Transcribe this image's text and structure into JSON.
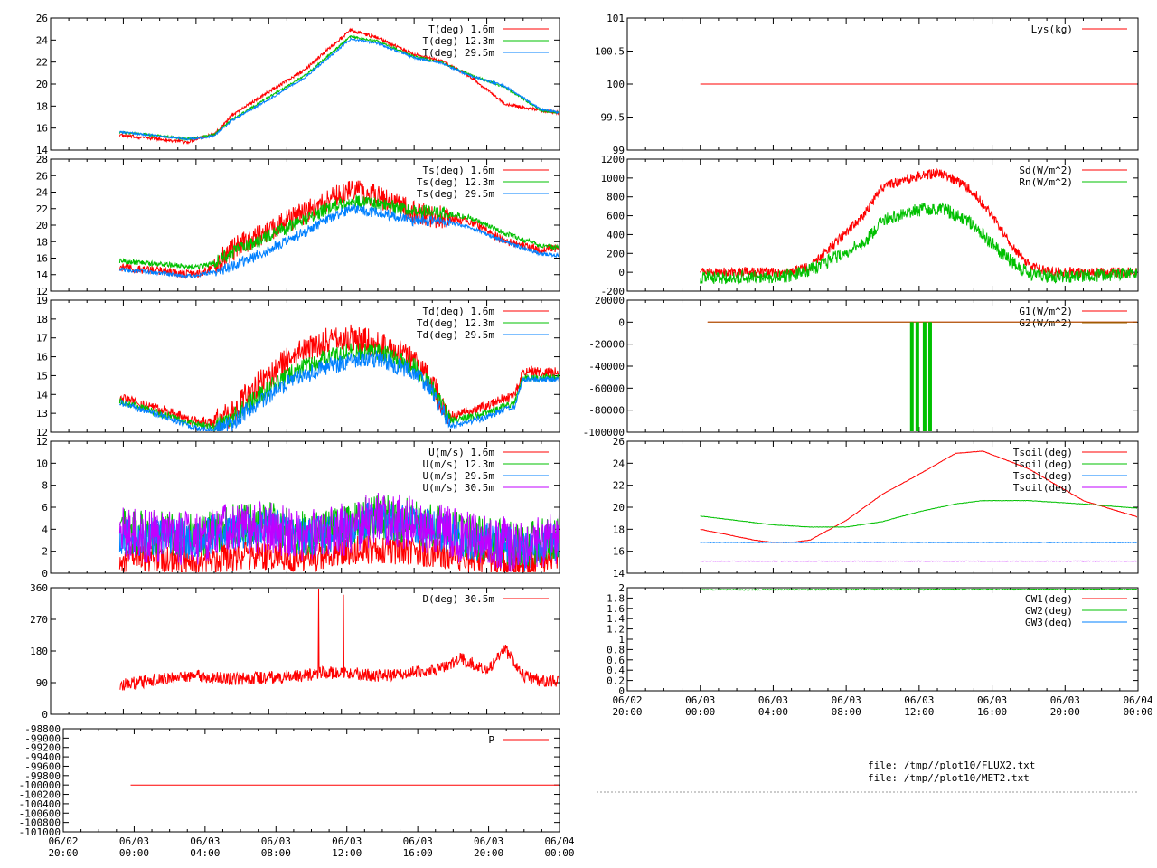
{
  "colors": {
    "red": "#ff0000",
    "green": "#00c000",
    "blue": "#0080ff",
    "purple": "#c000ff",
    "brown": "#a05a00"
  },
  "time_ticks": [
    [
      "06/02",
      "20:00"
    ],
    [
      "06/03",
      "00:00"
    ],
    [
      "06/03",
      "04:00"
    ],
    [
      "06/03",
      "08:00"
    ],
    [
      "06/03",
      "12:00"
    ],
    [
      "06/03",
      "16:00"
    ],
    [
      "06/03",
      "20:00"
    ],
    [
      "06/04",
      "00:00"
    ]
  ],
  "files": [
    "file: /tmp//plot10/FLUX2.txt",
    "file: /tmp//plot10/MET2.txt"
  ],
  "chart_data": [
    {
      "type": "line",
      "ylim": [
        14,
        26
      ],
      "y_ticks": [
        "14",
        "16",
        "18",
        "20",
        "22",
        "24",
        "26"
      ],
      "show_time_labels": false,
      "x_hours": [
        23.8,
        24,
        26,
        27.5,
        28.3,
        29,
        30,
        32,
        34,
        35.5,
        36.5,
        38,
        40,
        41.5,
        43,
        45,
        47,
        48
      ],
      "series": [
        {
          "name": "T(deg)  1.6m",
          "color": "red",
          "values": [
            15.4,
            15.3,
            15.0,
            14.7,
            15.2,
            15.4,
            17.2,
            19.3,
            21.3,
            23.5,
            24.9,
            24.2,
            22.7,
            22.1,
            20.8,
            18.2,
            17.6,
            17.4
          ]
        },
        {
          "name": "T(deg) 12.3m",
          "color": "green",
          "values": [
            15.6,
            15.6,
            15.3,
            15.0,
            15.2,
            15.4,
            16.8,
            18.8,
            20.8,
            22.9,
            24.3,
            23.9,
            22.5,
            22.0,
            20.9,
            19.7,
            17.6,
            17.4
          ]
        },
        {
          "name": "T(deg) 29.5m",
          "color": "blue",
          "values": [
            15.7,
            15.6,
            15.3,
            15.0,
            15.1,
            15.3,
            16.7,
            18.6,
            20.6,
            22.7,
            24.1,
            23.7,
            22.4,
            21.9,
            20.8,
            19.8,
            17.7,
            17.4
          ]
        }
      ]
    },
    {
      "type": "line",
      "ylim": [
        12,
        28
      ],
      "y_ticks": [
        "12",
        "14",
        "16",
        "18",
        "20",
        "22",
        "24",
        "26",
        "28"
      ],
      "show_time_labels": false,
      "x_hours": [
        23.8,
        24,
        26,
        27.5,
        28.3,
        29,
        30,
        32,
        34,
        35.5,
        36.5,
        38,
        40,
        41.5,
        43,
        45,
        47,
        48
      ],
      "series": [
        {
          "name": "Ts(deg)  1.6m",
          "color": "red",
          "values": [
            15.0,
            14.8,
            14.5,
            14.0,
            14.3,
            15.0,
            17.0,
            19.5,
            21.5,
            23.5,
            24.3,
            23.5,
            21.5,
            21.0,
            20.5,
            18.0,
            17.0,
            17.2
          ]
        },
        {
          "name": "Ts(deg) 12.3m",
          "color": "green",
          "values": [
            15.7,
            15.6,
            15.3,
            15.0,
            15.0,
            15.5,
            16.7,
            18.7,
            20.7,
            22.3,
            23.0,
            22.5,
            21.8,
            21.5,
            21.0,
            19.0,
            17.5,
            17.3
          ]
        },
        {
          "name": "Ts(deg) 29.5m",
          "color": "blue",
          "values": [
            14.7,
            14.6,
            14.2,
            13.8,
            14.0,
            14.3,
            15.0,
            17.0,
            19.2,
            21.0,
            22.0,
            21.5,
            20.5,
            20.5,
            19.8,
            18.0,
            16.5,
            16.3
          ]
        }
      ]
    },
    {
      "type": "line",
      "ylim": [
        12,
        19
      ],
      "y_ticks": [
        "12",
        "13",
        "14",
        "15",
        "16",
        "17",
        "18",
        "19"
      ],
      "show_time_labels": false,
      "x_hours": [
        23.8,
        24,
        26,
        28,
        29,
        30,
        31,
        33,
        35,
        36.5,
        38,
        40,
        41,
        42,
        44,
        45,
        45.5,
        46,
        48
      ],
      "series": [
        {
          "name": "Td(deg)  1.6m",
          "color": "red",
          "values": [
            13.9,
            13.8,
            13.2,
            12.6,
            12.5,
            13.0,
            14.2,
            15.8,
            16.8,
            17.0,
            16.7,
            15.8,
            14.5,
            12.8,
            13.4,
            13.8,
            13.9,
            15.2,
            15.2
          ]
        },
        {
          "name": "Td(deg) 12.3m",
          "color": "green",
          "values": [
            13.7,
            13.6,
            13.0,
            12.4,
            12.3,
            12.8,
            13.6,
            15.0,
            15.9,
            16.3,
            16.3,
            15.5,
            14.4,
            12.6,
            13.0,
            13.4,
            13.5,
            14.9,
            14.9
          ]
        },
        {
          "name": "Td(deg) 29.5m",
          "color": "blue",
          "values": [
            13.6,
            13.5,
            12.9,
            12.2,
            12.1,
            12.5,
            13.3,
            14.6,
            15.4,
            15.8,
            15.9,
            15.2,
            14.2,
            12.3,
            12.8,
            13.2,
            13.3,
            14.8,
            14.8
          ]
        }
      ]
    },
    {
      "type": "line",
      "ylim": [
        0,
        12
      ],
      "y_ticks": [
        "0",
        "2",
        "4",
        "6",
        "8",
        "10",
        "12"
      ],
      "show_time_labels": false,
      "x_hours": [
        23.8,
        24,
        26,
        28,
        29,
        30,
        32,
        34,
        35,
        36,
        38,
        40,
        42,
        43,
        45,
        46,
        47,
        48
      ],
      "series": [
        {
          "name": "U(m/s)  1.6m",
          "color": "red",
          "values": [
            1.3,
            1.4,
            1.2,
            1.0,
            1.3,
            1.5,
            1.6,
            1.3,
            1.6,
            2.0,
            2.2,
            2.0,
            1.6,
            1.3,
            1.0,
            0.8,
            1.2,
            1.5
          ]
        },
        {
          "name": "U(m/s) 12.3m",
          "color": "green",
          "values": [
            4.0,
            3.8,
            3.6,
            3.4,
            3.9,
            4.3,
            4.5,
            3.5,
            3.8,
            4.2,
            5.2,
            4.7,
            3.8,
            3.3,
            2.9,
            2.3,
            3.0,
            3.3
          ]
        },
        {
          "name": "U(m/s) 29.5m",
          "color": "blue",
          "values": [
            3.6,
            3.5,
            3.3,
            3.1,
            3.6,
            4.0,
            4.2,
            3.2,
            3.5,
            3.9,
            4.9,
            4.4,
            3.5,
            3.0,
            2.6,
            2.0,
            2.7,
            3.0
          ]
        },
        {
          "name": "U(m/s) 30.5m",
          "color": "purple",
          "values": [
            3.7,
            3.6,
            3.3,
            3.1,
            3.6,
            4.0,
            4.2,
            3.2,
            3.6,
            4.0,
            5.0,
            4.5,
            3.6,
            3.1,
            2.7,
            2.1,
            2.8,
            3.1
          ]
        }
      ]
    },
    {
      "type": "line",
      "ylim": [
        0,
        360
      ],
      "y_ticks": [
        "0",
        "90",
        "180",
        "270",
        "360"
      ],
      "show_time_labels": false,
      "x_hours": [
        23.8,
        24,
        26,
        28,
        30,
        32,
        34,
        35,
        36,
        37,
        38,
        40,
        41.5,
        42.5,
        43,
        44,
        45,
        46,
        47,
        48
      ],
      "series": [
        {
          "name": "D(deg)  30.5m",
          "color": "red",
          "values": [
            90,
            85,
            100,
            110,
            100,
            105,
            110,
            120,
            115,
            115,
            110,
            120,
            130,
            160,
            150,
            125,
            185,
            110,
            95,
            95
          ]
        }
      ]
    },
    {
      "type": "line",
      "ylim": [
        -101000,
        -98800
      ],
      "y_ticks": [
        "-101000",
        "-100800",
        "-100600",
        "-100400",
        "-100200",
        "-100000",
        "-99800",
        "-99600",
        "-99400",
        "-99200",
        "-99000",
        "-98800"
      ],
      "show_time_labels": true,
      "x_hours": [
        23.8,
        48
      ],
      "series": [
        {
          "name": "P",
          "color": "red",
          "values": [
            -100000,
            -100000
          ]
        }
      ]
    },
    {
      "type": "line",
      "ylim": [
        99,
        101
      ],
      "y_ticks": [
        "99",
        "99.5",
        "100",
        "100.5",
        "101"
      ],
      "show_time_labels": false,
      "x_hours": [
        24,
        48
      ],
      "series": [
        {
          "name": "Lys(kg)",
          "color": "red",
          "values": [
            100,
            100
          ]
        }
      ]
    },
    {
      "type": "line",
      "ylim": [
        -200,
        1200
      ],
      "y_ticks": [
        "-200",
        "0",
        "200",
        "400",
        "600",
        "800",
        "1000",
        "1200"
      ],
      "show_time_labels": false,
      "x_hours": [
        24,
        28,
        29,
        30,
        31,
        33,
        34,
        35.5,
        37,
        38,
        39,
        40,
        41,
        42,
        43,
        44,
        48
      ],
      "series": [
        {
          "name": "Sd(W/m^2)",
          "color": "red",
          "values": [
            0,
            0,
            5,
            60,
            230,
            620,
            900,
            1000,
            1050,
            980,
            850,
            600,
            300,
            80,
            10,
            0,
            0
          ]
        },
        {
          "name": "Rn(W/m^2)",
          "color": "green",
          "values": [
            -55,
            -50,
            -30,
            20,
            120,
            320,
            550,
            650,
            680,
            620,
            500,
            300,
            120,
            -20,
            -45,
            -50,
            -10
          ]
        }
      ]
    },
    {
      "type": "line",
      "ylim": [
        -100000,
        20000
      ],
      "y_ticks": [
        "-100000",
        "-80000",
        "-60000",
        "-40000",
        "-20000",
        "0",
        "20000"
      ],
      "show_time_labels": false,
      "x_hours": [
        24.4,
        48
      ],
      "series": [
        {
          "name": "G1(W/m^2)",
          "color": "red",
          "values": [
            0,
            0
          ]
        },
        {
          "name": "G2(W/m^2)",
          "color": "brown",
          "values": [
            0,
            0
          ]
        }
      ]
    },
    {
      "type": "line",
      "ylim": [
        14,
        26
      ],
      "y_ticks": [
        "14",
        "16",
        "18",
        "20",
        "22",
        "24",
        "26"
      ],
      "show_time_labels": false,
      "x_hours": [
        24,
        27,
        28,
        29,
        30,
        32,
        34,
        36,
        38,
        39.5,
        42,
        45,
        48
      ],
      "series": [
        {
          "name": "Tsoil(deg)",
          "color": "red",
          "values": [
            18.0,
            17.0,
            16.8,
            16.8,
            17.0,
            18.8,
            21.2,
            23.0,
            24.9,
            25.1,
            23.5,
            20.6,
            19.1
          ]
        },
        {
          "name": "Tsoil(deg)",
          "color": "green",
          "values": [
            19.2,
            18.6,
            18.4,
            18.3,
            18.2,
            18.2,
            18.7,
            19.6,
            20.3,
            20.6,
            20.6,
            20.3,
            19.9
          ]
        },
        {
          "name": "Tsoil(deg)",
          "color": "blue",
          "values": [
            16.8,
            16.8,
            16.8,
            16.8,
            16.8,
            16.8,
            16.8,
            16.8,
            16.8,
            16.8,
            16.8,
            16.8,
            16.8
          ]
        },
        {
          "name": "Tsoil(deg)",
          "color": "purple",
          "values": [
            15.1,
            15.1,
            15.1,
            15.1,
            15.1,
            15.1,
            15.1,
            15.1,
            15.1,
            15.1,
            15.1,
            15.1,
            15.1
          ]
        }
      ]
    },
    {
      "type": "line",
      "ylim": [
        0,
        2
      ],
      "y_ticks": [
        "0",
        "0.2",
        "0.4",
        "0.6",
        "0.8",
        "1",
        "1.2",
        "1.4",
        "1.6",
        "1.8",
        "2"
      ],
      "show_time_labels": true,
      "x_hours": [
        24,
        48
      ],
      "series": [
        {
          "name": "GW1(deg)",
          "color": "red",
          "values": []
        },
        {
          "name": "GW2(deg)",
          "color": "green",
          "values": [
            1.96,
            1.97
          ]
        },
        {
          "name": "GW3(deg)",
          "color": "blue",
          "values": []
        }
      ]
    }
  ]
}
